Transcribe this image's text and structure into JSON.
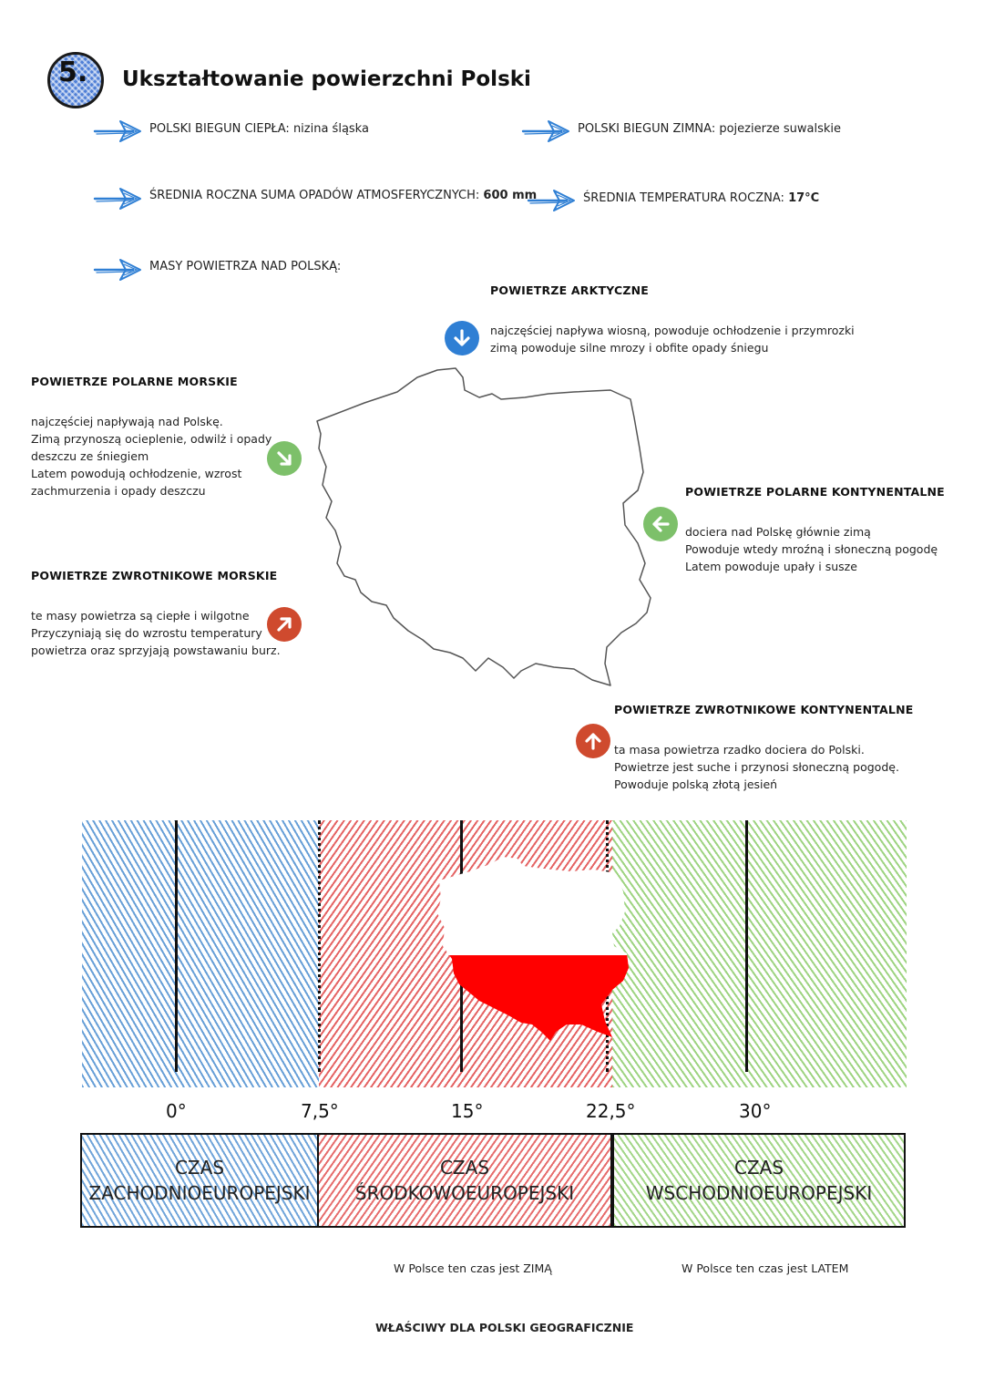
{
  "header": {
    "number": "5.",
    "title": "Ukształtowanie powierzchni Polski"
  },
  "facts": {
    "hot_pole": {
      "label": "POLSKI BIEGUN CIEPŁA:",
      "value": "nizina śląska"
    },
    "cold_pole": {
      "label": "POLSKI BIEGUN ZIMNA:",
      "value": "pojezierze suwalskie"
    },
    "precipitation": {
      "label": "ŚREDNIA ROCZNA SUMA OPADÓW ATMOSFERYCZNYCH:",
      "value": "600 mm"
    },
    "temperature": {
      "label": "ŚREDNIA TEMPERATURA ROCZNA:",
      "value": "17°C"
    },
    "air_masses": {
      "label": "MASY POWIETRZA NAD POLSKĄ:"
    }
  },
  "air_masses": {
    "arctic": {
      "heading": "POWIETRZE ARKTYCZNE",
      "lines": [
        "najczęściej napływa wiosną, powoduje ochłodzenie i przymrozki",
        "zimą powoduje silne mrozy i obfite opady śniegu"
      ],
      "color": "#2f7fd4"
    },
    "polar_maritime": {
      "heading": "POWIETRZE POLARNE MORSKIE",
      "lines": [
        "najczęściej napływają nad Polskę.",
        "Zimą przynoszą ocieplenie, odwilż i opady",
        "deszczu ze śniegiem",
        "Latem powodują ochłodzenie, wzrost",
        "zachmurzenia i opady deszczu"
      ],
      "color": "#7dc06a"
    },
    "polar_continental": {
      "heading": "POWIETRZE POLARNE KONTYNENTALNE",
      "lines": [
        "dociera nad Polskę głównie zimą",
        "Powoduje wtedy mroźną i słoneczną pogodę",
        "Latem powoduje upały i susze"
      ],
      "color": "#7dc06a"
    },
    "tropical_maritime": {
      "heading": "POWIETRZE ZWROTNIKOWE MORSKIE",
      "lines": [
        "te masy powietrza są ciepłe i wilgotne",
        "Przyczyniają się do wzrostu temperatury",
        "powietrza oraz sprzyjają powstawaniu burz."
      ],
      "color": "#cf4a2e"
    },
    "tropical_continental": {
      "heading": "POWIETRZE ZWROTNIKOWE KONTYNENTALNE",
      "lines": [
        "ta masa powietrza rzadko dociera do Polski.",
        "Powietrze jest suche i przynosi słoneczną pogodę.",
        "Powoduje polską złotą jesień"
      ],
      "color": "#cf4a2e"
    }
  },
  "time_zones": {
    "degrees": [
      "0°",
      "7,5°",
      "15°",
      "22,5°",
      "30°"
    ],
    "zones": [
      {
        "line1": "CZAS",
        "line2": "ZACHODNIOEUROPEJSKI",
        "color": "#4c8ed0"
      },
      {
        "line1": "CZAS",
        "line2": "ŚRODKOWOEUROPEJSKI",
        "color": "#e04848"
      },
      {
        "line1": "CZAS",
        "line2": "WSCHODNIOEUROPEJSKI",
        "color": "#93cf73"
      }
    ],
    "notes": {
      "winter": "W Polsce ten czas jest ZIMĄ",
      "summer": "W Polsce ten czas jest LATEM",
      "geographic": "WŁAŚCIWY DLA POLSKI GEOGRAFICZNIE"
    },
    "flag_colors": {
      "top": "#ffffff",
      "bottom": "#ff0000"
    }
  }
}
